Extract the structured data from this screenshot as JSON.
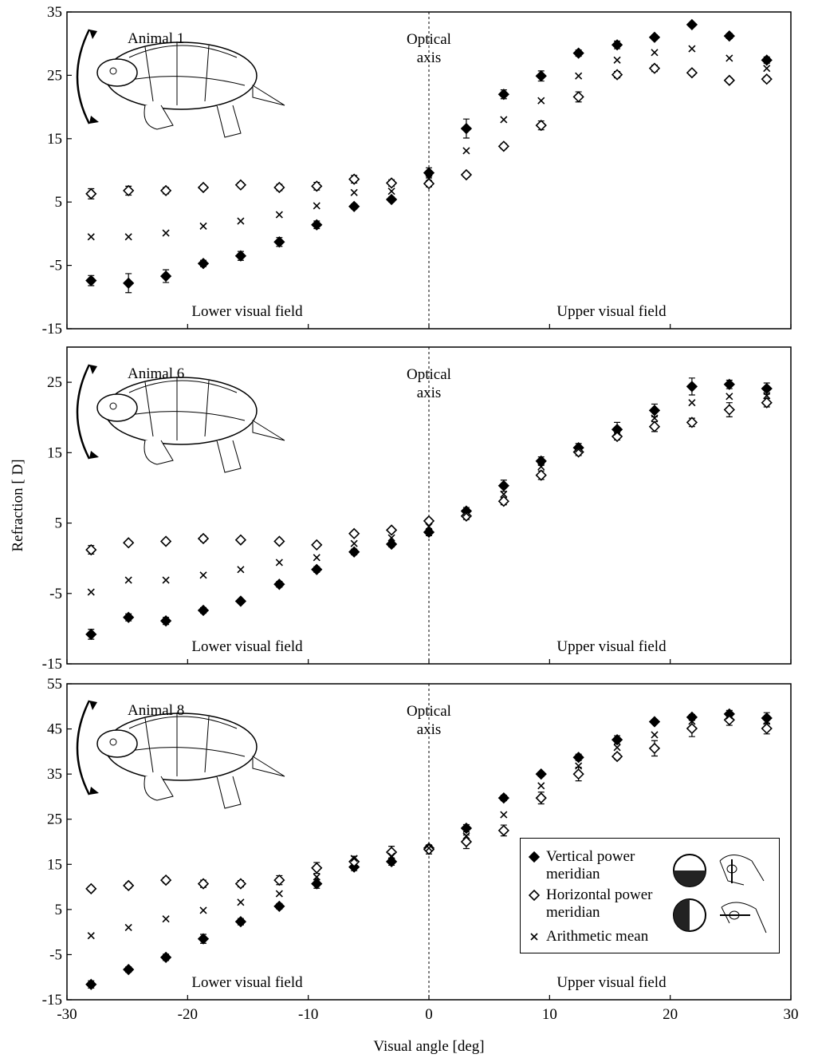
{
  "chart_data": [
    {
      "type": "scatter",
      "title": "Animal 1",
      "annotation": [
        "Optical",
        "axis"
      ],
      "left_label": "Lower visual field",
      "right_label": "Upper visual field",
      "x": [
        -28,
        -24.9,
        -21.8,
        -18.7,
        -15.6,
        -12.4,
        -9.3,
        -6.2,
        -3.1,
        0,
        3.1,
        6.2,
        9.3,
        12.4,
        15.6,
        18.7,
        21.8,
        24.9,
        28
      ],
      "xlim": [
        -30,
        30
      ],
      "ylim": [
        -15,
        35
      ],
      "yticks": [
        -15,
        -5,
        5,
        15,
        25,
        35
      ],
      "series": [
        {
          "name": "Vertical power meridian",
          "color": "#000000",
          "marker": "filled-diamond",
          "values": [
            -7.4,
            -7.8,
            -6.7,
            -4.7,
            -3.5,
            -1.3,
            1.4,
            4.3,
            5.4,
            9.6,
            16.6,
            22.0,
            24.9,
            28.5,
            29.8,
            31.0,
            33.0,
            31.2,
            27.4
          ],
          "errors": [
            0.8,
            1.5,
            1.0,
            0.5,
            0.7,
            0.7,
            0.6,
            0.4,
            0.4,
            0.8,
            1.5,
            0.7,
            0.8,
            0.5,
            0.6,
            0.4,
            0.3,
            0.4,
            0.5
          ]
        },
        {
          "name": "Horizontal power meridian",
          "color": "#000000",
          "marker": "open-diamond",
          "values": [
            6.3,
            6.8,
            6.8,
            7.3,
            7.7,
            7.3,
            7.5,
            8.6,
            8.0,
            7.9,
            9.3,
            13.8,
            17.1,
            21.6,
            25.1,
            26.1,
            25.4,
            24.2,
            24.4
          ],
          "errors": [
            0.8,
            0.7,
            0.5,
            0.4,
            0.4,
            0.5,
            0.6,
            0.6,
            0.5,
            0.5,
            0.4,
            0.4,
            0.7,
            0.8,
            0.5,
            0.5,
            0.4,
            0.4,
            0.4
          ]
        },
        {
          "name": "Arithmetic mean",
          "color": "#000000",
          "marker": "cross",
          "values": [
            -0.5,
            -0.5,
            0.1,
            1.2,
            2.0,
            3.0,
            4.4,
            6.5,
            6.7,
            8.7,
            13.1,
            18.0,
            21.0,
            24.9,
            27.4,
            28.6,
            29.2,
            27.7,
            26.1
          ]
        }
      ]
    },
    {
      "type": "scatter",
      "title": "Animal 6",
      "annotation": [
        "Optical",
        "axis"
      ],
      "left_label": "Lower visual field",
      "right_label": "Upper visual field",
      "y_label": "Refraction [ D]",
      "x": [
        -28,
        -24.9,
        -21.8,
        -18.7,
        -15.6,
        -12.4,
        -9.3,
        -6.2,
        -3.1,
        0,
        3.1,
        6.2,
        9.3,
        12.4,
        15.6,
        18.7,
        21.8,
        24.9,
        28
      ],
      "xlim": [
        -30,
        30
      ],
      "ylim": [
        -15,
        30
      ],
      "yticks": [
        -15,
        -5,
        5,
        15,
        25
      ],
      "series": [
        {
          "name": "Vertical power meridian",
          "color": "#000000",
          "marker": "filled-diamond",
          "values": [
            -10.8,
            -8.4,
            -8.9,
            -7.4,
            -6.1,
            -3.7,
            -1.6,
            0.9,
            2.0,
            3.7,
            6.7,
            10.3,
            13.8,
            15.7,
            18.3,
            21.0,
            24.4,
            24.7,
            24.1
          ],
          "errors": [
            0.7,
            0.5,
            0.5,
            0.4,
            0.3,
            0.4,
            0.4,
            0.4,
            0.4,
            0.5,
            0.5,
            0.8,
            0.6,
            0.6,
            1.0,
            0.9,
            1.2,
            0.6,
            0.8
          ]
        },
        {
          "name": "Horizontal power meridian",
          "color": "#000000",
          "marker": "open-diamond",
          "values": [
            1.2,
            2.2,
            2.4,
            2.8,
            2.6,
            2.4,
            1.9,
            3.5,
            4.0,
            5.3,
            6.0,
            8.1,
            11.8,
            15.1,
            17.3,
            18.7,
            19.3,
            21.1,
            22.1
          ],
          "errors": [
            0.6,
            0.3,
            0.3,
            0.4,
            0.3,
            0.3,
            0.3,
            0.3,
            0.3,
            0.3,
            0.5,
            0.5,
            0.6,
            0.5,
            0.5,
            0.7,
            0.6,
            1.0,
            0.6
          ]
        },
        {
          "name": "Arithmetic mean",
          "color": "#000000",
          "marker": "cross",
          "values": [
            -4.8,
            -3.1,
            -3.1,
            -2.4,
            -1.6,
            -0.6,
            0.1,
            2.1,
            2.9,
            4.5,
            6.4,
            9.1,
            13.0,
            15.5,
            17.9,
            19.9,
            22.1,
            23.0,
            23.1
          ]
        }
      ]
    },
    {
      "type": "scatter",
      "title": "Animal 8",
      "annotation": [
        "Optical",
        "axis"
      ],
      "left_label": "Lower visual field",
      "right_label": "Upper visual field",
      "x_label": "Visual angle [deg]",
      "legend": "lower right",
      "x": [
        -28,
        -24.9,
        -21.8,
        -18.7,
        -15.6,
        -12.4,
        -9.3,
        -6.2,
        -3.1,
        0,
        3.1,
        6.2,
        9.3,
        12.4,
        15.6,
        18.7,
        21.8,
        24.9,
        28
      ],
      "xlim": [
        -30,
        30
      ],
      "xticks": [
        -30,
        -20,
        -10,
        0,
        10,
        20,
        30
      ],
      "ylim": [
        -15,
        55
      ],
      "yticks": [
        -15,
        -5,
        5,
        15,
        25,
        35,
        45,
        55
      ],
      "series": [
        {
          "name": "Vertical power meridian",
          "color": "#000000",
          "marker": "filled-diamond",
          "values": [
            -11.6,
            -8.3,
            -5.6,
            -1.5,
            2.3,
            5.7,
            10.7,
            14.4,
            15.6,
            18.6,
            23.0,
            29.7,
            35.0,
            38.7,
            42.6,
            46.6,
            47.6,
            48.3,
            47.4
          ],
          "errors": [
            0.8,
            0.6,
            0.7,
            1.0,
            0.7,
            0.6,
            1.0,
            0.8,
            0.8,
            0.7,
            0.8,
            0.6,
            0.5,
            0.7,
            0.9,
            0.5,
            0.6,
            0.8,
            1.2
          ]
        },
        {
          "name": "Horizontal power meridian",
          "color": "#000000",
          "marker": "open-diamond",
          "values": [
            9.6,
            10.3,
            11.5,
            10.7,
            10.7,
            11.5,
            14.2,
            15.6,
            17.7,
            18.3,
            20.0,
            22.5,
            29.7,
            35.0,
            38.9,
            40.7,
            45.1,
            47.0,
            45.1
          ],
          "errors": [
            0.5,
            0.6,
            0.6,
            0.8,
            0.7,
            1.0,
            1.2,
            1.2,
            1.3,
            1.0,
            1.5,
            1.2,
            1.3,
            1.5,
            0.6,
            1.7,
            1.8,
            1.2,
            1.2
          ]
        },
        {
          "name": "Arithmetic mean",
          "color": "#000000",
          "marker": "cross",
          "values": [
            -0.8,
            1.0,
            2.9,
            4.8,
            6.6,
            8.5,
            12.2,
            16.3,
            16.8,
            18.6,
            21.3,
            26.0,
            32.4,
            36.8,
            40.9,
            43.7,
            46.7,
            47.9,
            46.7
          ]
        }
      ]
    }
  ]
}
